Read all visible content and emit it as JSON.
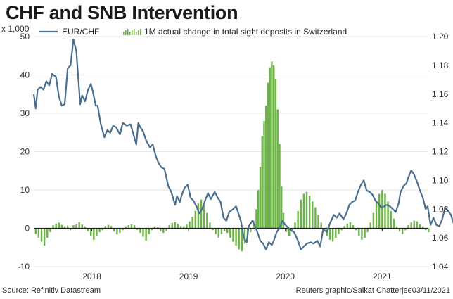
{
  "title": "CHF and SNB Intervention",
  "unit_label": "x 1,000",
  "source": "Source: Refinitiv Datastream",
  "credit": "Reuters graphic/Saikat Chatterjee03/11/2021",
  "colors": {
    "line": "#4a6f8f",
    "bars": "#6bb345",
    "zero": "#222222",
    "grid": "#e6e6e6"
  },
  "chart_data": {
    "type": "bar+line",
    "title": "CHF and SNB Intervention",
    "legend": [
      "EUR/CHF",
      "1M actual change in total sight deposits in Switzerland"
    ],
    "left_axis": {
      "label": "x 1,000",
      "ylim": [
        -10,
        50
      ],
      "ticks": [
        "-10",
        "0",
        "10",
        "20",
        "30",
        "40",
        "50"
      ]
    },
    "right_axis": {
      "ylim": [
        1.04,
        1.2
      ],
      "ticks": [
        "1.04",
        "1.06",
        "1.08",
        "1.10",
        "1.12",
        "1.14",
        "1.16",
        "1.18",
        "1.20"
      ]
    },
    "x_axis": {
      "range": [
        2017.4,
        2021.47
      ],
      "ticks": [
        {
          "label": "2018",
          "pos": 2018.0
        },
        {
          "label": "2019",
          "pos": 2019.0
        },
        {
          "label": "2020",
          "pos": 2020.0
        },
        {
          "label": "2021",
          "pos": 2021.0
        }
      ]
    },
    "series": [
      {
        "name": "EUR/CHF",
        "type": "line",
        "axis": "right",
        "points": [
          [
            2017.4,
            1.16
          ],
          [
            2017.42,
            1.15
          ],
          [
            2017.44,
            1.163
          ],
          [
            2017.47,
            1.165
          ],
          [
            2017.5,
            1.163
          ],
          [
            2017.53,
            1.169
          ],
          [
            2017.56,
            1.166
          ],
          [
            2017.59,
            1.174
          ],
          [
            2017.63,
            1.172
          ],
          [
            2017.66,
            1.158
          ],
          [
            2017.69,
            1.152
          ],
          [
            2017.72,
            1.153
          ],
          [
            2017.75,
            1.178
          ],
          [
            2017.78,
            1.18
          ],
          [
            2017.81,
            1.198
          ],
          [
            2017.84,
            1.19
          ],
          [
            2017.88,
            1.153
          ],
          [
            2017.9,
            1.159
          ],
          [
            2017.93,
            1.155
          ],
          [
            2017.96,
            1.163
          ],
          [
            2017.99,
            1.167
          ],
          [
            2018.01,
            1.162
          ],
          [
            2018.04,
            1.152
          ],
          [
            2018.06,
            1.152
          ],
          [
            2018.09,
            1.14
          ],
          [
            2018.13,
            1.13
          ],
          [
            2018.16,
            1.135
          ],
          [
            2018.19,
            1.133
          ],
          [
            2018.22,
            1.138
          ],
          [
            2018.25,
            1.137
          ],
          [
            2018.29,
            1.132
          ],
          [
            2018.32,
            1.14
          ],
          [
            2018.36,
            1.138
          ],
          [
            2018.4,
            1.139
          ],
          [
            2018.43,
            1.132
          ],
          [
            2018.46,
            1.125
          ],
          [
            2018.48,
            1.14
          ],
          [
            2018.5,
            1.137
          ],
          [
            2018.53,
            1.134
          ],
          [
            2018.56,
            1.128
          ],
          [
            2018.6,
            1.123
          ],
          [
            2018.63,
            1.125
          ],
          [
            2018.66,
            1.117
          ],
          [
            2018.69,
            1.112
          ],
          [
            2018.72,
            1.109
          ],
          [
            2018.75,
            1.108
          ],
          [
            2018.79,
            1.096
          ],
          [
            2018.82,
            1.092
          ],
          [
            2018.86,
            1.083
          ],
          [
            2018.88,
            1.089
          ],
          [
            2018.91,
            1.085
          ],
          [
            2018.93,
            1.09
          ],
          [
            2018.96,
            1.095
          ],
          [
            2018.99,
            1.097
          ],
          [
            2019.02,
            1.088
          ],
          [
            2019.05,
            1.086
          ],
          [
            2019.08,
            1.082
          ],
          [
            2019.11,
            1.077
          ],
          [
            2019.14,
            1.08
          ],
          [
            2019.17,
            1.086
          ],
          [
            2019.2,
            1.091
          ],
          [
            2019.23,
            1.087
          ],
          [
            2019.27,
            1.092
          ],
          [
            2019.3,
            1.088
          ],
          [
            2019.33,
            1.085
          ],
          [
            2019.36,
            1.074
          ],
          [
            2019.39,
            1.072
          ],
          [
            2019.42,
            1.078
          ],
          [
            2019.46,
            1.08
          ],
          [
            2019.49,
            1.082
          ],
          [
            2019.51,
            1.078
          ],
          [
            2019.54,
            1.072
          ],
          [
            2019.57,
            1.06
          ],
          [
            2019.6,
            1.057
          ],
          [
            2019.62,
            1.068
          ],
          [
            2019.66,
            1.072
          ],
          [
            2019.7,
            1.066
          ],
          [
            2019.74,
            1.058
          ],
          [
            2019.77,
            1.056
          ],
          [
            2019.8,
            1.052
          ],
          [
            2019.83,
            1.057
          ],
          [
            2019.86,
            1.055
          ],
          [
            2019.88,
            1.058
          ],
          [
            2019.91,
            1.064
          ],
          [
            2019.94,
            1.067
          ],
          [
            2019.97,
            1.072
          ],
          [
            2020.0,
            1.069
          ],
          [
            2020.03,
            1.067
          ],
          [
            2020.06,
            1.065
          ],
          [
            2020.09,
            1.064
          ],
          [
            2020.13,
            1.058
          ],
          [
            2020.16,
            1.052
          ],
          [
            2020.19,
            1.054
          ],
          [
            2020.22,
            1.056
          ],
          [
            2020.26,
            1.057
          ],
          [
            2020.29,
            1.056
          ],
          [
            2020.33,
            1.058
          ],
          [
            2020.36,
            1.054
          ],
          [
            2020.39,
            1.066
          ],
          [
            2020.43,
            1.064
          ],
          [
            2020.46,
            1.07
          ],
          [
            2020.5,
            1.076
          ],
          [
            2020.53,
            1.074
          ],
          [
            2020.56,
            1.077
          ],
          [
            2020.6,
            1.073
          ],
          [
            2020.63,
            1.077
          ],
          [
            2020.66,
            1.083
          ],
          [
            2020.69,
            1.085
          ],
          [
            2020.72,
            1.086
          ],
          [
            2020.75,
            1.092
          ],
          [
            2020.78,
            1.097
          ],
          [
            2020.81,
            1.1
          ],
          [
            2020.84,
            1.093
          ],
          [
            2020.87,
            1.092
          ],
          [
            2020.9,
            1.09
          ],
          [
            2020.93,
            1.086
          ],
          [
            2020.96,
            1.084
          ],
          [
            2020.99,
            1.081
          ],
          [
            2021.02,
            1.082
          ],
          [
            2021.05,
            1.083
          ],
          [
            2021.08,
            1.082
          ],
          [
            2021.11,
            1.08
          ],
          [
            2021.14,
            1.078
          ],
          [
            2021.17,
            1.084
          ],
          [
            2021.19,
            1.092
          ],
          [
            2021.22,
            1.096
          ],
          [
            2021.25,
            1.098
          ],
          [
            2021.27,
            1.102
          ],
          [
            2021.3,
            1.107
          ],
          [
            2021.33,
            1.104
          ],
          [
            2021.36,
            1.099
          ],
          [
            2021.39,
            1.093
          ],
          [
            2021.42,
            1.088
          ],
          [
            2021.45,
            1.08
          ],
          [
            2021.47,
            1.082
          ],
          [
            2021.5,
            1.069
          ],
          [
            2021.53,
            1.074
          ],
          [
            2021.56,
            1.069
          ],
          [
            2021.59,
            1.068
          ],
          [
            2021.62,
            1.073
          ],
          [
            2021.65,
            1.081
          ],
          [
            2021.68,
            1.079
          ],
          [
            2021.71,
            1.076
          ],
          [
            2021.74,
            1.07
          ],
          [
            2021.77,
            1.07
          ],
          [
            2021.8,
            1.062
          ]
        ]
      },
      {
        "name": "1M actual change in total sight deposits in Switzerland",
        "type": "bar",
        "axis": "left",
        "points": [
          [
            2017.42,
            -1.5
          ],
          [
            2017.45,
            -2.5
          ],
          [
            2017.48,
            -3.5
          ],
          [
            2017.51,
            -4.5
          ],
          [
            2017.54,
            -2.5
          ],
          [
            2017.57,
            -1.0
          ],
          [
            2017.6,
            0.8
          ],
          [
            2017.63,
            1.2
          ],
          [
            2017.66,
            1.5
          ],
          [
            2017.69,
            0.9
          ],
          [
            2017.72,
            0.5
          ],
          [
            2017.75,
            0.7
          ],
          [
            2017.78,
            -0.5
          ],
          [
            2017.81,
            0.8
          ],
          [
            2017.84,
            1.0
          ],
          [
            2017.87,
            1.6
          ],
          [
            2017.9,
            1.0
          ],
          [
            2017.93,
            0.5
          ],
          [
            2017.96,
            -0.8
          ],
          [
            2017.99,
            -2.0
          ],
          [
            2018.02,
            -3.0
          ],
          [
            2018.05,
            -2.0
          ],
          [
            2018.08,
            -1.0
          ],
          [
            2018.11,
            -0.5
          ],
          [
            2018.14,
            0.6
          ],
          [
            2018.17,
            0.9
          ],
          [
            2018.2,
            0.6
          ],
          [
            2018.23,
            -0.8
          ],
          [
            2018.26,
            -1.6
          ],
          [
            2018.29,
            -1.2
          ],
          [
            2018.32,
            -0.5
          ],
          [
            2018.35,
            0.5
          ],
          [
            2018.38,
            0.8
          ],
          [
            2018.41,
            1.0
          ],
          [
            2018.44,
            0.8
          ],
          [
            2018.47,
            -0.4
          ],
          [
            2018.5,
            -1.2
          ],
          [
            2018.53,
            -2.2
          ],
          [
            2018.56,
            -3.2
          ],
          [
            2018.59,
            -1.5
          ],
          [
            2018.62,
            -0.5
          ],
          [
            2018.65,
            0.5
          ],
          [
            2018.68,
            0.3
          ],
          [
            2018.71,
            -0.8
          ],
          [
            2018.74,
            -1.2
          ],
          [
            2018.77,
            -0.6
          ],
          [
            2018.8,
            0.8
          ],
          [
            2018.83,
            1.4
          ],
          [
            2018.86,
            1.6
          ],
          [
            2018.89,
            1.2
          ],
          [
            2018.92,
            0.6
          ],
          [
            2018.95,
            0.5
          ],
          [
            2018.98,
            1.0
          ],
          [
            2019.01,
            1.8
          ],
          [
            2019.04,
            3.0
          ],
          [
            2019.07,
            4.5
          ],
          [
            2019.1,
            6.5
          ],
          [
            2019.13,
            7.5
          ],
          [
            2019.16,
            6.0
          ],
          [
            2019.19,
            4.0
          ],
          [
            2019.22,
            1.5
          ],
          [
            2019.25,
            -0.5
          ],
          [
            2019.28,
            -1.5
          ],
          [
            2019.31,
            -2.5
          ],
          [
            2019.34,
            -1.5
          ],
          [
            2019.37,
            -0.8
          ],
          [
            2019.4,
            -1.2
          ],
          [
            2019.43,
            -2.5
          ],
          [
            2019.46,
            -3.5
          ],
          [
            2019.49,
            -4.5
          ],
          [
            2019.52,
            -5.5
          ],
          [
            2019.55,
            -6.0
          ],
          [
            2019.58,
            -4.0
          ],
          [
            2019.61,
            -2.0
          ],
          [
            2019.64,
            -1.0
          ],
          [
            2019.67,
            2.0
          ],
          [
            2019.7,
            5.0
          ],
          [
            2019.72,
            10.0
          ],
          [
            2019.74,
            16.0
          ],
          [
            2019.76,
            24.0
          ],
          [
            2019.78,
            28.0
          ],
          [
            2019.8,
            32.0
          ],
          [
            2019.82,
            38.0
          ],
          [
            2019.84,
            42.0
          ],
          [
            2019.86,
            43.5
          ],
          [
            2019.88,
            42.5
          ],
          [
            2019.9,
            39.0
          ],
          [
            2019.92,
            31.0
          ],
          [
            2019.94,
            22.0
          ],
          [
            2019.96,
            11.0
          ],
          [
            2019.98,
            4.0
          ],
          [
            2020.01,
            -1.0
          ],
          [
            2020.04,
            -2.0
          ],
          [
            2020.07,
            -0.8
          ],
          [
            2020.1,
            1.5
          ],
          [
            2020.13,
            4.5
          ],
          [
            2020.16,
            7.5
          ],
          [
            2020.19,
            9.0
          ],
          [
            2020.22,
            9.5
          ],
          [
            2020.25,
            8.5
          ],
          [
            2020.28,
            7.0
          ],
          [
            2020.31,
            5.5
          ],
          [
            2020.34,
            3.5
          ],
          [
            2020.37,
            1.5
          ],
          [
            2020.4,
            -0.5
          ],
          [
            2020.43,
            -2.0
          ],
          [
            2020.46,
            -3.0
          ],
          [
            2020.49,
            -3.5
          ],
          [
            2020.52,
            -2.5
          ],
          [
            2020.55,
            -1.5
          ],
          [
            2020.58,
            -0.5
          ],
          [
            2020.61,
            0.6
          ],
          [
            2020.64,
            1.2
          ],
          [
            2020.67,
            1.6
          ],
          [
            2020.7,
            0.8
          ],
          [
            2020.73,
            -0.5
          ],
          [
            2020.76,
            -2.0
          ],
          [
            2020.79,
            -3.0
          ],
          [
            2020.82,
            -2.5
          ],
          [
            2020.85,
            -1.0
          ],
          [
            2020.88,
            1.5
          ],
          [
            2020.91,
            4.0
          ],
          [
            2020.94,
            7.0
          ],
          [
            2020.97,
            9.0
          ],
          [
            2021.0,
            10.0
          ],
          [
            2021.03,
            9.0
          ],
          [
            2021.06,
            7.0
          ],
          [
            2021.09,
            4.5
          ],
          [
            2021.12,
            2.5
          ],
          [
            2021.15,
            0.5
          ],
          [
            2021.18,
            -0.8
          ],
          [
            2021.21,
            -1.5
          ],
          [
            2021.24,
            -0.5
          ],
          [
            2021.27,
            0.8
          ],
          [
            2021.3,
            1.5
          ],
          [
            2021.33,
            2.0
          ],
          [
            2021.36,
            1.8
          ],
          [
            2021.39,
            1.0
          ],
          [
            2021.42,
            0.5
          ],
          [
            2021.45,
            -0.5
          ],
          [
            2021.48,
            -1.0
          ]
        ]
      }
    ]
  }
}
